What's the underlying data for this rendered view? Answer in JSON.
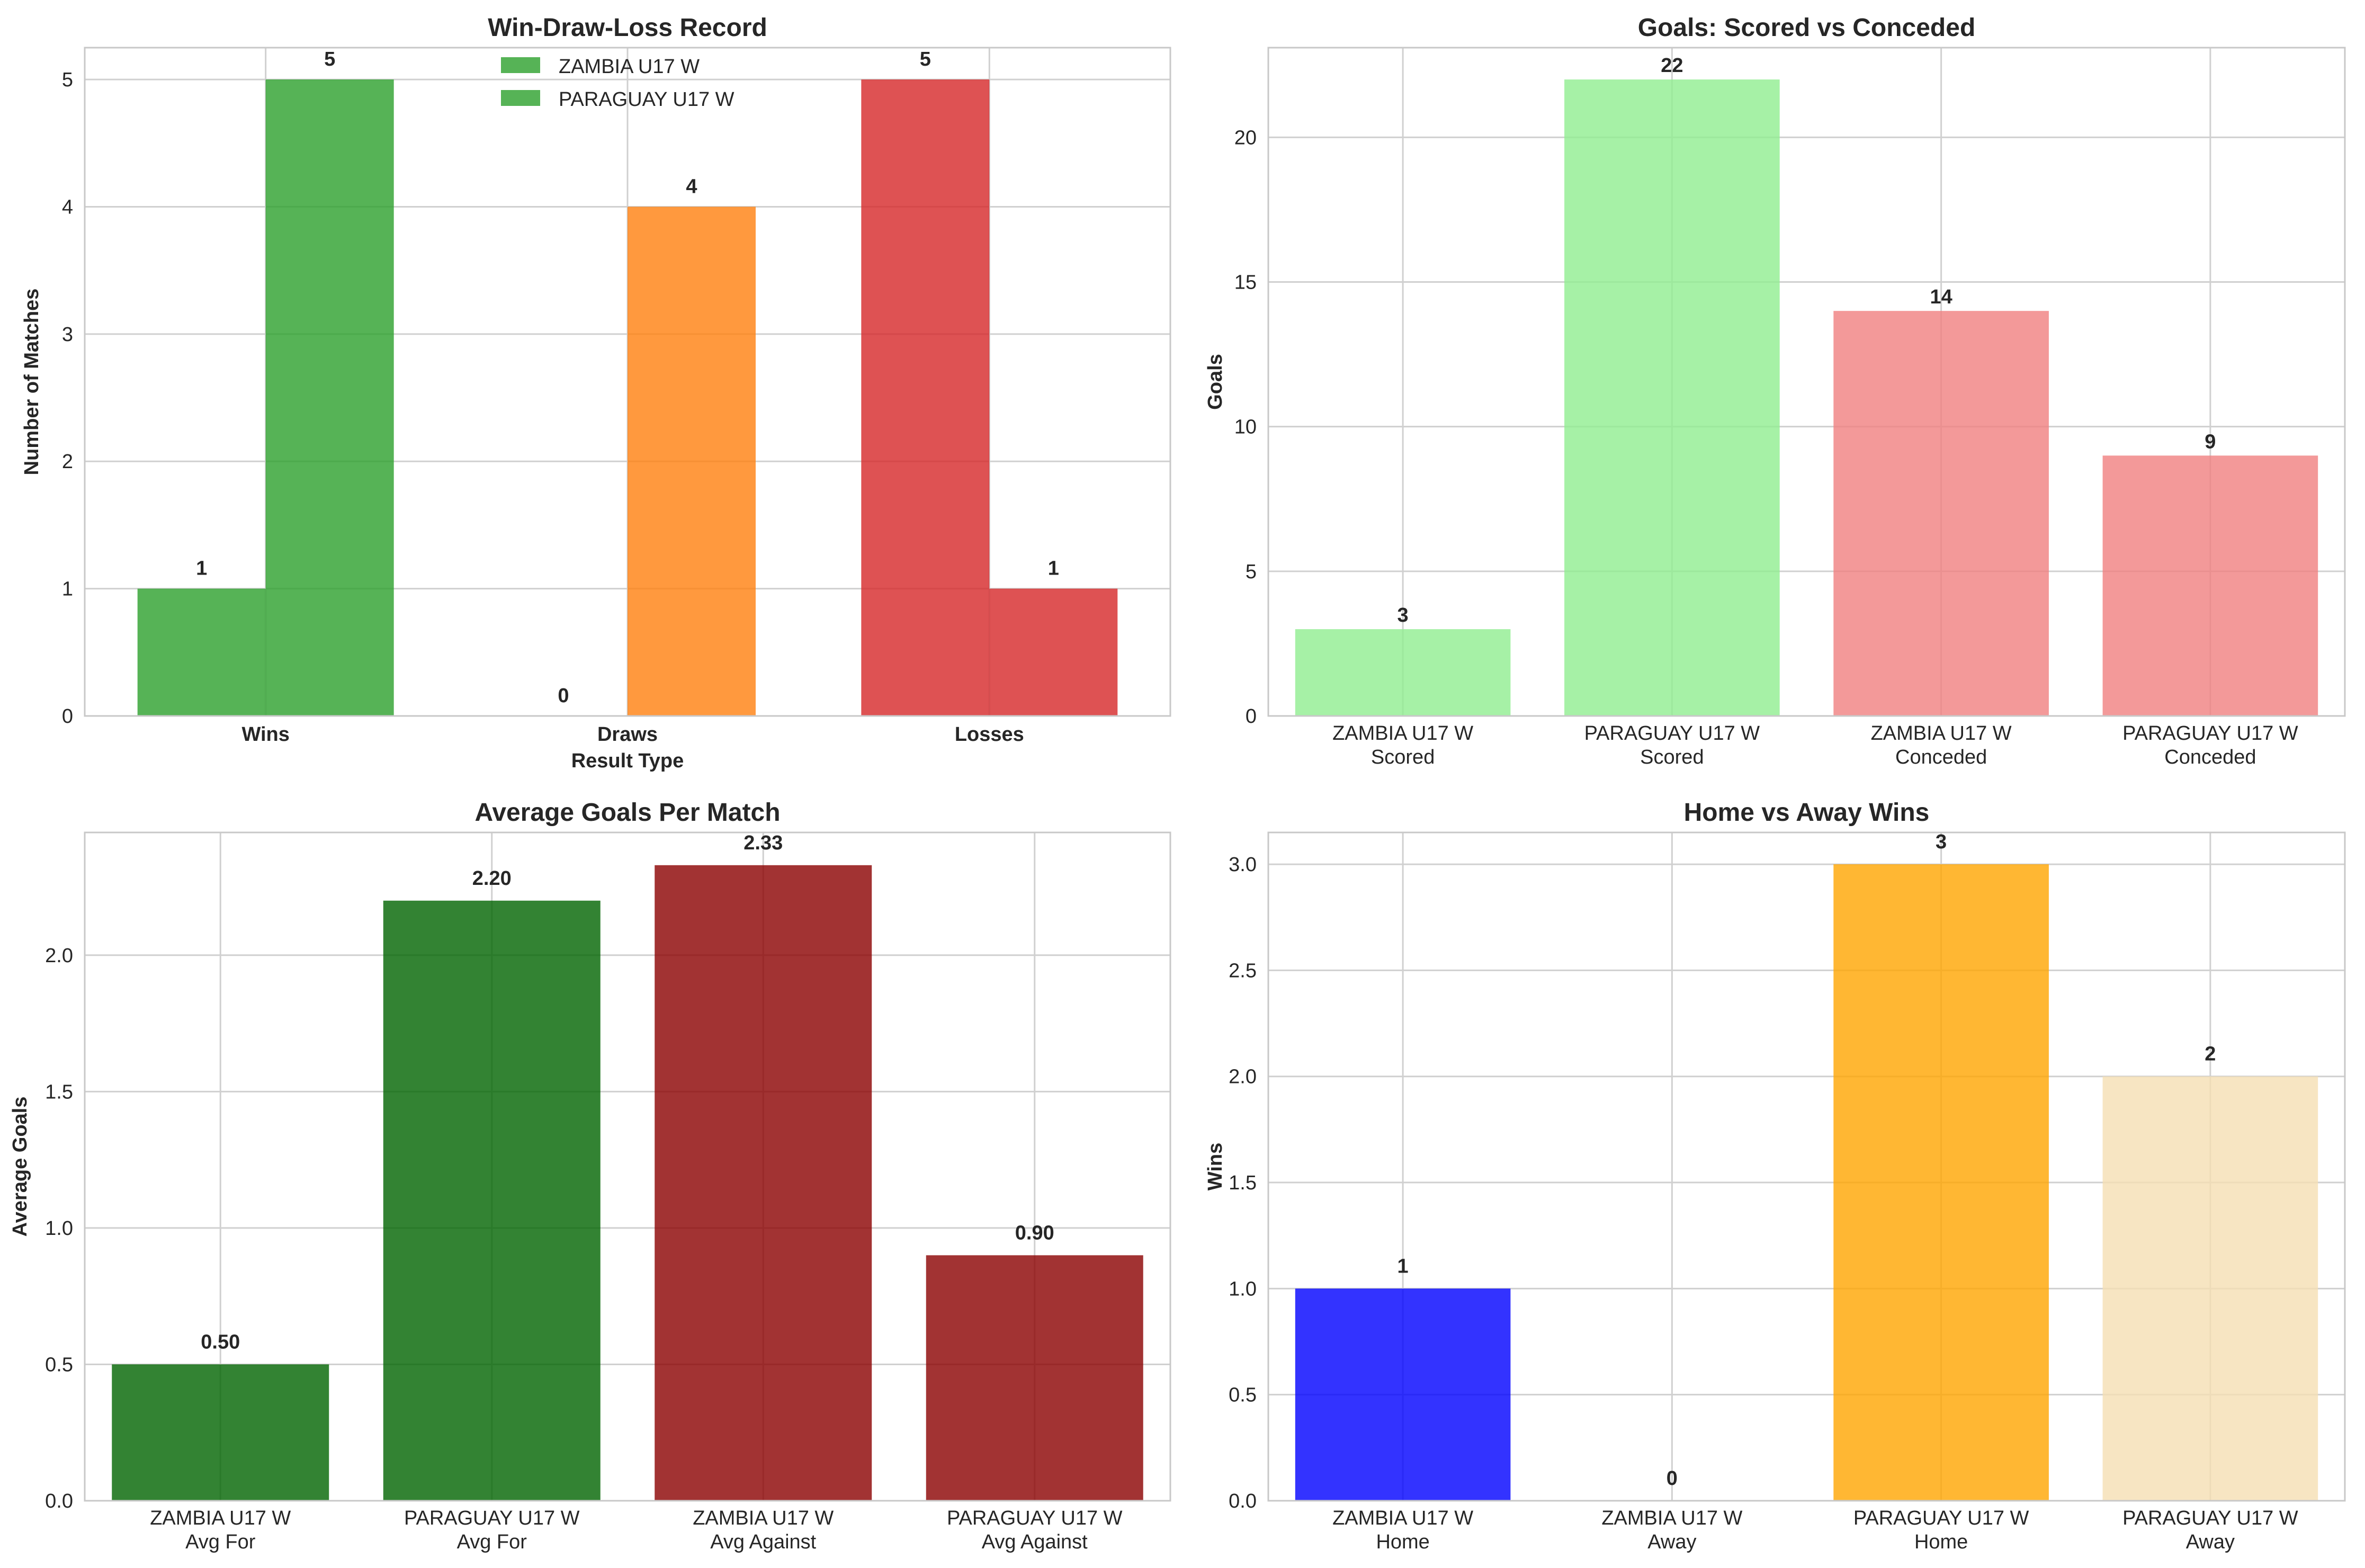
{
  "chart_data": [
    {
      "type": "bar",
      "title": "Win-Draw-Loss Record",
      "xlabel": "Result Type",
      "ylabel": "Number of Matches",
      "categories": [
        "Wins",
        "Draws",
        "Losses"
      ],
      "series": [
        {
          "name": "ZAMBIA U17 W",
          "values": [
            1,
            0,
            5
          ],
          "colors": [
            "#2ca02c",
            "#ff7f0e",
            "#d62728"
          ]
        },
        {
          "name": "PARAGUAY U17 W",
          "values": [
            5,
            4,
            1
          ],
          "colors": [
            "#2ca02c",
            "#ff7f0e",
            "#d62728"
          ]
        }
      ],
      "data_labels": [
        "1",
        "0",
        "5",
        "5",
        "4",
        "1"
      ],
      "legend_colors": [
        "#2ca02c",
        "#2ca02c"
      ],
      "ylim": [
        0,
        5.25
      ],
      "yticks": [
        "0",
        "1",
        "2",
        "3",
        "4",
        "5"
      ],
      "legend_position": "top-center",
      "grid": true
    },
    {
      "type": "bar",
      "title": "Goals: Scored vs Conceded",
      "xlabel": "",
      "ylabel": "Goals",
      "categories": [
        [
          "ZAMBIA U17 W",
          "Scored"
        ],
        [
          "PARAGUAY U17 W",
          "Scored"
        ],
        [
          "ZAMBIA U17 W",
          "Conceded"
        ],
        [
          "PARAGUAY U17 W",
          "Conceded"
        ]
      ],
      "values": [
        3,
        22,
        14,
        9
      ],
      "colors": [
        "#90ee90",
        "#90ee90",
        "#f08080",
        "#f08080"
      ],
      "data_labels": [
        "3",
        "22",
        "14",
        "9"
      ],
      "ylim": [
        0,
        23.1
      ],
      "yticks": [
        "0",
        "5",
        "10",
        "15",
        "20"
      ],
      "grid": true
    },
    {
      "type": "bar",
      "title": "Average Goals Per Match",
      "xlabel": "",
      "ylabel": "Average Goals",
      "categories": [
        [
          "ZAMBIA U17 W",
          "Avg For"
        ],
        [
          "PARAGUAY U17 W",
          "Avg For"
        ],
        [
          "ZAMBIA U17 W",
          "Avg Against"
        ],
        [
          "PARAGUAY U17 W",
          "Avg Against"
        ]
      ],
      "values": [
        0.5,
        2.2,
        2.33,
        0.9
      ],
      "colors": [
        "#006400",
        "#006400",
        "#8b0000",
        "#8b0000"
      ],
      "data_labels": [
        "0.50",
        "2.20",
        "2.33",
        "0.90"
      ],
      "ylim": [
        0,
        2.45
      ],
      "yticks": [
        "0.0",
        "0.5",
        "1.0",
        "1.5",
        "2.0"
      ],
      "grid": true
    },
    {
      "type": "bar",
      "title": "Home vs Away Wins",
      "xlabel": "",
      "ylabel": "Wins",
      "categories": [
        [
          "ZAMBIA U17 W",
          "Home"
        ],
        [
          "ZAMBIA U17 W",
          "Away"
        ],
        [
          "PARAGUAY U17 W",
          "Home"
        ],
        [
          "PARAGUAY U17 W",
          "Away"
        ]
      ],
      "values": [
        1,
        0,
        3,
        2
      ],
      "colors": [
        "#0000ff",
        "#87ceeb",
        "#ffa500",
        "#f5deb3"
      ],
      "data_labels": [
        "1",
        "0",
        "3",
        "2"
      ],
      "ylim": [
        0,
        3.15
      ],
      "yticks": [
        "0.0",
        "0.5",
        "1.0",
        "1.5",
        "2.0",
        "2.5",
        "3.0"
      ],
      "grid": true
    }
  ]
}
